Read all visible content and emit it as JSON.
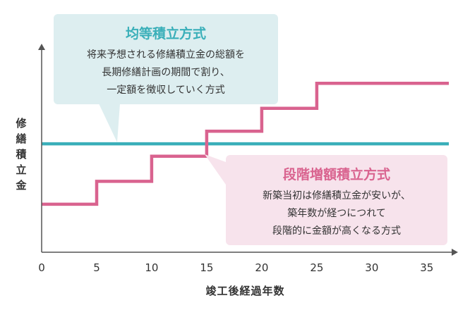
{
  "chart_data": {
    "type": "line",
    "xlabel": "竣工後経過年数",
    "ylabel": "修繕積立金",
    "xlim": [
      0,
      37
    ],
    "ylim": [
      0,
      10
    ],
    "x_ticks": [
      0,
      5,
      10,
      15,
      20,
      25,
      30,
      35
    ],
    "grid": false,
    "colors": {
      "flat": "#3aafb9",
      "stepped": "#d9638f",
      "axis": "#555555",
      "flat_box": "#ddeef0",
      "stepped_box": "#f7e3ec"
    },
    "series": [
      {
        "name": "均等積立方式",
        "kind": "flat",
        "x": [
          0,
          37
        ],
        "y": [
          5.2,
          5.2
        ]
      },
      {
        "name": "段階増額積立方式",
        "kind": "stepped",
        "x": [
          0,
          5,
          5,
          10,
          10,
          15,
          15,
          20,
          20,
          25,
          25,
          37
        ],
        "y": [
          2.3,
          2.3,
          3.4,
          3.4,
          4.6,
          4.6,
          5.8,
          5.8,
          6.9,
          6.9,
          8.1,
          8.1
        ]
      }
    ],
    "annotations": [
      {
        "series": "均等積立方式",
        "title": "均等積立方式",
        "lines": [
          "将来予想される修繕積立金の総額を",
          "長期修繕計画の期間で割り、",
          "一定額を徴収していく方式"
        ]
      },
      {
        "series": "段階増額積立方式",
        "title": "段階増額積立方式",
        "lines": [
          "新築当初は修繕積立金が安いが、",
          "築年数が経つにつれて",
          "段階的に金額が高くなる方式"
        ]
      }
    ]
  }
}
